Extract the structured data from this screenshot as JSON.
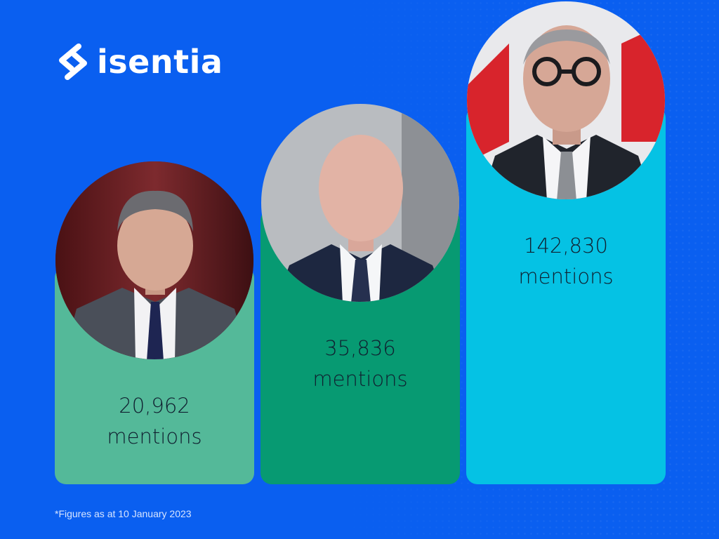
{
  "brand": {
    "logo_text": "isentia"
  },
  "footnote": "*Figures as at 10 January 2023",
  "colors": {
    "background": "#0a5ff0",
    "bar_1": "#54b999",
    "bar_2": "#079a72",
    "bar_3": "#05c2e4"
  },
  "chart_data": {
    "type": "bar",
    "categories": [
      "",
      "",
      ""
    ],
    "values": [
      20962,
      35836,
      142830
    ],
    "data_labels": [
      {
        "value": "20,962",
        "unit": "mentions"
      },
      {
        "value": "35,836",
        "unit": "mentions"
      },
      {
        "value": "142,830",
        "unit": "mentions"
      }
    ],
    "title": "",
    "xlabel": "",
    "ylabel": "",
    "grid": false
  }
}
